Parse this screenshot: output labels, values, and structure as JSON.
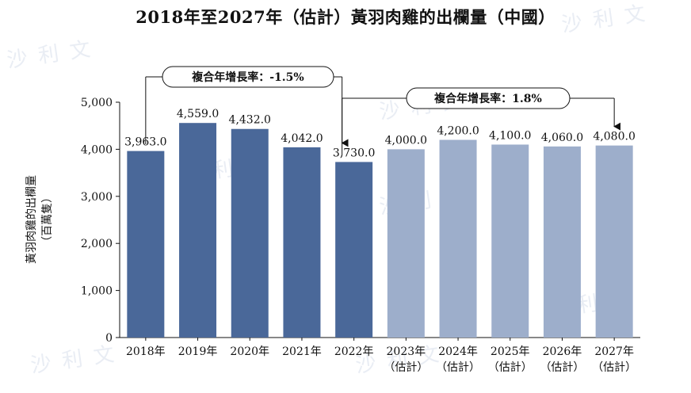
{
  "chart_data": {
    "type": "bar",
    "title": "2018年至2027年（估計）黃羽肉雞的出欄量（中國）",
    "ylabel": "黃羽肉雞的出欄量",
    "ylabel_unit": "（百萬隻）",
    "ylim": [
      0,
      5000
    ],
    "yticks": [
      "0",
      "1,000",
      "2,000",
      "3,000",
      "4,000",
      "5,000"
    ],
    "ytick_values": [
      0,
      1000,
      2000,
      3000,
      4000,
      5000
    ],
    "categories": [
      {
        "line1": "2018年",
        "line2": ""
      },
      {
        "line1": "2019年",
        "line2": ""
      },
      {
        "line1": "2020年",
        "line2": ""
      },
      {
        "line1": "2021年",
        "line2": ""
      },
      {
        "line1": "2022年",
        "line2": ""
      },
      {
        "line1": "2023年",
        "line2": "（估計）"
      },
      {
        "line1": "2024年",
        "line2": "（估計）"
      },
      {
        "line1": "2025年",
        "line2": "（估計）"
      },
      {
        "line1": "2026年",
        "line2": "（估計）"
      },
      {
        "line1": "2027年",
        "line2": "（估計）"
      }
    ],
    "values": [
      3963.0,
      4559.0,
      4432.0,
      4042.0,
      3730.0,
      4000.0,
      4200.0,
      4100.0,
      4060.0,
      4080.0
    ],
    "data_labels": [
      "3,963.0",
      "4,559.0",
      "4,432.0",
      "4,042.0",
      "3,730.0",
      "4,000.0",
      "4,200.0",
      "4,100.0",
      "4,060.0",
      "4,080.0"
    ],
    "estimated": [
      false,
      false,
      false,
      false,
      false,
      true,
      true,
      true,
      true,
      true
    ],
    "colors": {
      "actual": "#4a6899",
      "estimated": "#9daecb"
    },
    "grid": false,
    "annotations": [
      {
        "label": "複合年增長率：-1.5%",
        "from_index": 0,
        "to_index": 4
      },
      {
        "label": "複合年增長率：1.8%",
        "from_index": 4,
        "to_index": 9
      }
    ],
    "watermark": "沙利文"
  }
}
